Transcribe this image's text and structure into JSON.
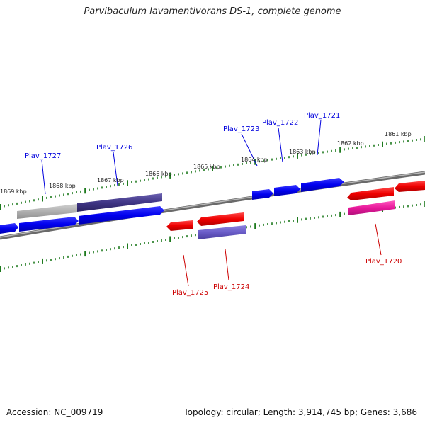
{
  "title": "Parvibaculum lavamentivorans DS-1, complete genome",
  "footer": {
    "accession": "Accession: NC_009719",
    "summary": "Topology: circular; Length: 3,914,745 bp; Genes: 3,686"
  },
  "scale": {
    "color": "#1e7a1e",
    "ticks": [
      {
        "name": "1861-kbp-label",
        "label": "1861 kbp"
      },
      {
        "name": "1862-kbp-label",
        "label": "1862 kbp"
      },
      {
        "name": "1863-kbp-label",
        "label": "1863 kbp"
      },
      {
        "name": "1864-kbp-label",
        "label": "1864 kbp"
      },
      {
        "name": "1865-kbp-label",
        "label": "1865 kbp"
      },
      {
        "name": "1866-kbp-label",
        "label": "1866 kbp"
      },
      {
        "name": "1867-kbp-label",
        "label": "1867 kbp"
      },
      {
        "name": "1868-kbp-label",
        "label": "1868 kbp"
      },
      {
        "name": "1869-kbp-label",
        "label": "1869 kbp"
      }
    ]
  },
  "genes": {
    "forward": [
      {
        "label": "Plav_1727",
        "color": "#0000dd"
      },
      {
        "label": "Plav_1726",
        "color": "#0000dd"
      },
      {
        "label": "Plav_1723",
        "color": "#0000dd"
      },
      {
        "label": "Plav_1722",
        "color": "#0000dd"
      },
      {
        "label": "Plav_1721",
        "color": "#0000dd"
      }
    ],
    "reverse": [
      {
        "label": "Plav_1725",
        "color": "#cc0000"
      },
      {
        "label": "Plav_1724",
        "color": "#cc0000"
      },
      {
        "label": "Plav_1720",
        "color": "#cc0000"
      }
    ]
  },
  "colors": {
    "forward_gene": "#0000ee",
    "reverse_gene": "#ee0000",
    "reverse_alt_gene": "#e8189a",
    "upper_band": "#4a3f8c",
    "upper_band_light": "#b8b8b8",
    "lower_band": "#6a5cc8",
    "backbone": "#7a7a7a"
  }
}
